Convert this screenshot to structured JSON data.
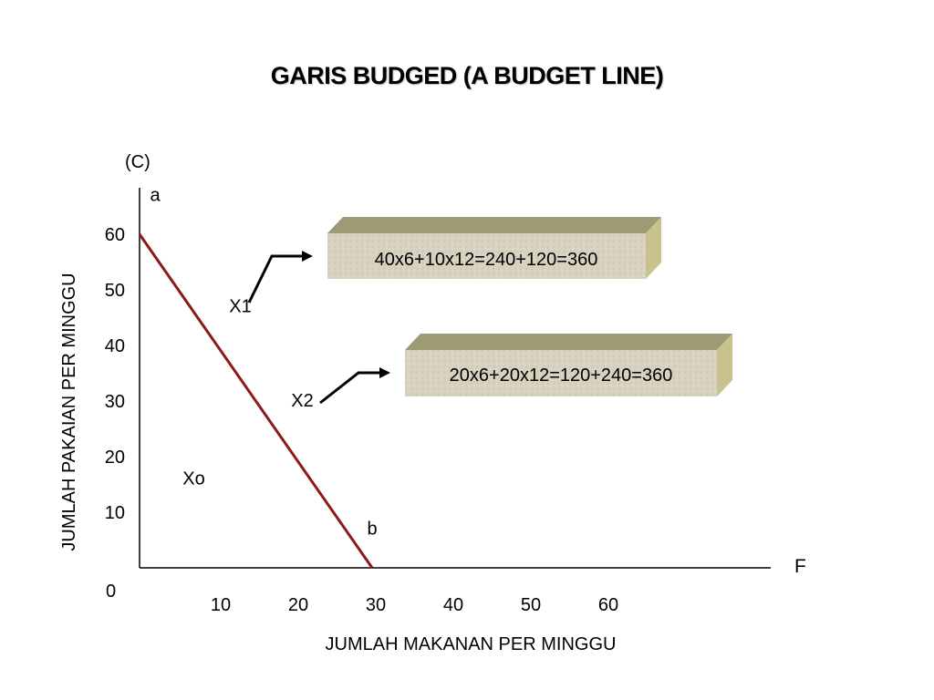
{
  "slide": {
    "title": "GARIS BUDGED (A BUDGET LINE)"
  },
  "chart_data": {
    "type": "line",
    "y_unit_label": "(C)",
    "x_end_label": "F",
    "origin_label": "0",
    "xlabel": "JUMLAH MAKANAN PER MINGGU",
    "ylabel": "JUMLAH PAKAIAN PER MINGGU",
    "x_ticks": [
      10,
      20,
      30,
      40,
      50,
      60
    ],
    "y_ticks": [
      10,
      20,
      30,
      40,
      50,
      60
    ],
    "xlim": [
      0,
      62
    ],
    "ylim": [
      0,
      66
    ],
    "grid": false,
    "colors": {
      "budget_line": "#8b1a1a",
      "axis": "#000000",
      "box_face": "#d8d2c0",
      "box_top": "#9e9a76",
      "box_side": "#c8c28c"
    },
    "series": [
      {
        "points": [
          [
            0,
            60
          ],
          [
            30,
            0
          ]
        ]
      }
    ],
    "point_labels": [
      {
        "label": "a",
        "x": 2,
        "y": 66
      },
      {
        "label": "b",
        "x": 30,
        "y": 6
      },
      {
        "label": "X1",
        "x": 13,
        "y": 46
      },
      {
        "label": "X2",
        "x": 21,
        "y": 29
      },
      {
        "label": "Xo",
        "x": 7,
        "y": 15
      }
    ],
    "annotations": [
      {
        "text": "40x6+10x12=240+120=360"
      },
      {
        "text": "20x6+20x12=120+240=360"
      }
    ]
  }
}
